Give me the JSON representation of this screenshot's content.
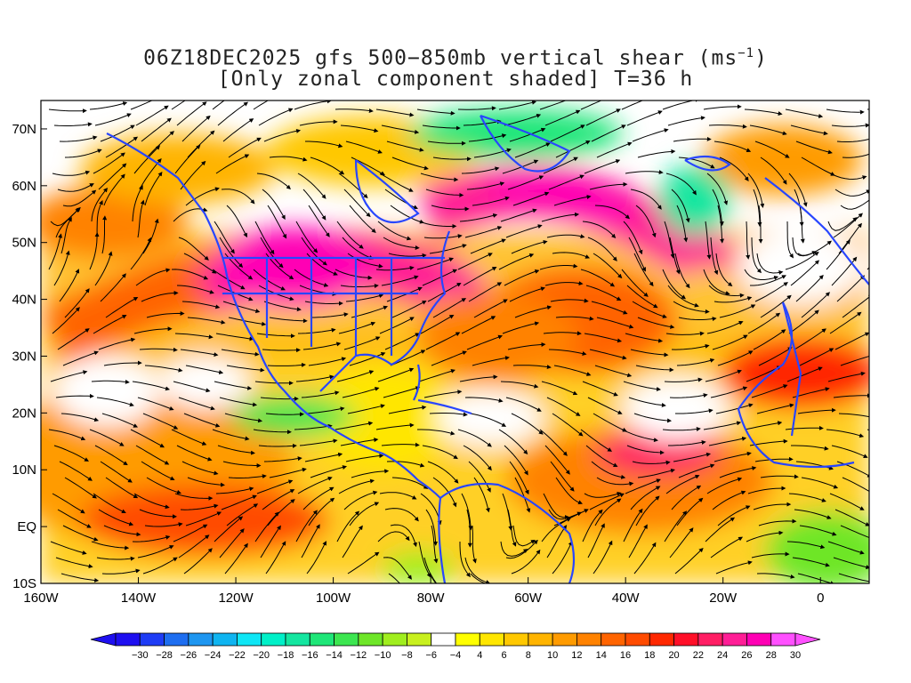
{
  "title": {
    "line1_main": "06Z18DEC2025 gfs 500−850mb vertical shear (ms",
    "line1_sup": "−1",
    "line1_end": ")",
    "line2": "[Only zonal component shaded] T=36 h"
  },
  "axes": {
    "lat_labels": [
      "70N",
      "60N",
      "50N",
      "40N",
      "30N",
      "20N",
      "10N",
      "EQ",
      "10S"
    ],
    "lat_values": [
      70,
      60,
      50,
      40,
      30,
      20,
      10,
      0,
      -10
    ],
    "lon_labels": [
      "160W",
      "140W",
      "120W",
      "100W",
      "80W",
      "60W",
      "40W",
      "20W",
      "0"
    ],
    "lon_values": [
      -160,
      -140,
      -120,
      -100,
      -80,
      -60,
      -40,
      -20,
      0
    ],
    "lon_range": [
      -160,
      10
    ],
    "lat_range": [
      -10,
      75
    ]
  },
  "colorbar": {
    "labels": [
      "−30",
      "−28",
      "−26",
      "−24",
      "−22",
      "−20",
      "−18",
      "−16",
      "−14",
      "−12",
      "−10",
      "−8",
      "−6",
      "−4",
      "4",
      "6",
      "8",
      "10",
      "12",
      "14",
      "16",
      "18",
      "20",
      "22",
      "24",
      "26",
      "28",
      "30"
    ],
    "colors": [
      "#1e0ff0",
      "#1e3cf5",
      "#1e6ef0",
      "#1e96f0",
      "#0fb4f0",
      "#0fe6f5",
      "#00f0c8",
      "#14e6a0",
      "#1ee678",
      "#3ce650",
      "#6ee628",
      "#a0ee1e",
      "#c8f01e",
      "#ffffff",
      "#ffff00",
      "#ffe600",
      "#ffc800",
      "#ffb400",
      "#ff9b00",
      "#ff8200",
      "#ff6400",
      "#ff4b00",
      "#ff2800",
      "#ff0f28",
      "#ff1e64",
      "#ff1e96",
      "#ff00b4",
      "#ff50ff"
    ]
  },
  "map": {
    "coastline_color": "#2846ff",
    "streamline_color": "#000000"
  }
}
